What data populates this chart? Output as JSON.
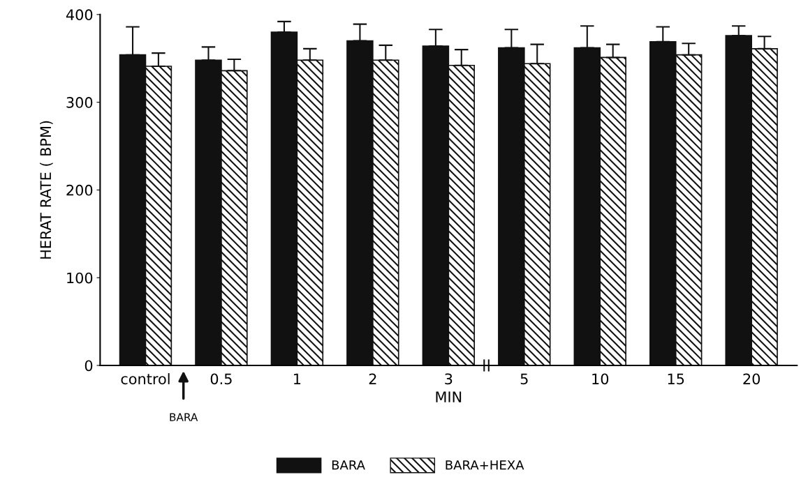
{
  "chart_data": {
    "type": "bar",
    "ylabel": "HERAT RATE ( BPM)",
    "xlabel": "MIN",
    "categories": [
      "control",
      "0.5",
      "1",
      "2",
      "3",
      "5",
      "10",
      "15",
      "20"
    ],
    "series": [
      {
        "name": "BARA",
        "color": "#111111",
        "values": [
          354,
          348,
          380,
          370,
          364,
          362,
          362,
          369,
          376
        ],
        "errors": [
          32,
          15,
          12,
          19,
          19,
          21,
          25,
          17,
          11
        ]
      },
      {
        "name": "BARA+HEXA",
        "color": "#111111",
        "values": [
          341,
          336,
          348,
          348,
          342,
          344,
          351,
          354,
          361
        ],
        "errors": [
          15,
          13,
          13,
          17,
          18,
          22,
          15,
          13,
          14
        ]
      }
    ],
    "ylim": [
      0,
      400
    ],
    "yticks": [
      0,
      100,
      200,
      300,
      400
    ],
    "annotations": [
      "BARA"
    ],
    "grid": false,
    "legend": "bottom"
  }
}
